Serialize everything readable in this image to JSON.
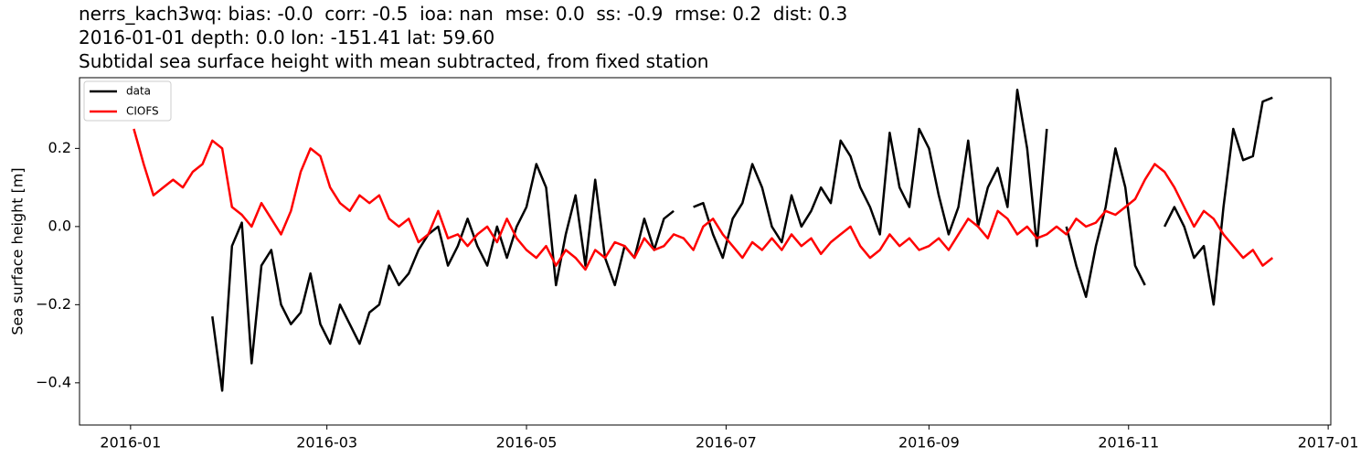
{
  "chart_data": {
    "type": "line",
    "title": [
      "nerrs_kach3wq: bias: -0.0  corr: -0.5  ioa: nan  mse: 0.0  ss: -0.9  rmse: 0.2  dist: 0.3",
      "2016-01-01 depth: 0.0 lon: -151.41 lat: 59.60",
      "Subtidal sea surface height with mean subtracted, from fixed station"
    ],
    "y_label": "Sea surface height [m]",
    "legend": "upper left",
    "grid": false,
    "x": [
      1,
      4,
      7,
      10,
      13,
      16,
      19,
      22,
      25,
      28,
      31,
      34,
      37,
      40,
      43,
      46,
      49,
      52,
      55,
      58,
      61,
      64,
      67,
      70,
      73,
      76,
      79,
      82,
      85,
      88,
      91,
      94,
      97,
      100,
      103,
      106,
      109,
      112,
      115,
      118,
      121,
      124,
      127,
      130,
      133,
      136,
      139,
      142,
      145,
      148,
      151,
      154,
      157,
      160,
      163,
      166,
      169,
      172,
      175,
      178,
      181,
      184,
      187,
      190,
      193,
      196,
      199,
      202,
      205,
      208,
      211,
      214,
      217,
      220,
      223,
      226,
      229,
      232,
      235,
      238,
      241,
      244,
      247,
      250,
      253,
      256,
      259,
      262,
      265,
      268,
      271,
      274,
      277,
      280,
      283,
      286,
      289,
      292,
      295,
      298,
      301,
      304,
      307,
      310,
      313,
      316,
      319,
      322,
      325,
      328,
      331,
      334,
      337,
      340,
      343,
      346,
      349
    ],
    "xlim": [
      -15.6,
      366.8
    ],
    "xticks": [
      {
        "value": 0,
        "label": "2016-01"
      },
      {
        "value": 60,
        "label": "2016-03"
      },
      {
        "value": 121,
        "label": "2016-05"
      },
      {
        "value": 182,
        "label": "2016-07"
      },
      {
        "value": 244,
        "label": "2016-09"
      },
      {
        "value": 305,
        "label": "2016-11"
      },
      {
        "value": 366,
        "label": "2017-01"
      }
    ],
    "ylim": [
      -0.508,
      0.381
    ],
    "yticks": [
      {
        "value": -0.4,
        "label": "−0.4"
      },
      {
        "value": -0.2,
        "label": "−0.2"
      },
      {
        "value": 0,
        "label": "0.0"
      },
      {
        "value": 0.2,
        "label": "0.2"
      }
    ],
    "series": [
      {
        "name": "data",
        "color": "#000000",
        "values": [
          null,
          null,
          null,
          null,
          null,
          null,
          null,
          null,
          -0.23,
          -0.42,
          -0.05,
          0.01,
          -0.35,
          -0.1,
          -0.06,
          -0.2,
          -0.25,
          -0.22,
          -0.12,
          -0.25,
          -0.3,
          -0.2,
          -0.25,
          -0.3,
          -0.22,
          -0.2,
          -0.1,
          -0.15,
          -0.12,
          -0.06,
          -0.02,
          0.0,
          -0.1,
          -0.05,
          0.02,
          -0.05,
          -0.1,
          0.0,
          -0.08,
          0.0,
          0.05,
          0.16,
          0.1,
          -0.15,
          -0.02,
          0.08,
          -0.1,
          0.12,
          -0.08,
          -0.15,
          -0.05,
          -0.08,
          0.02,
          -0.06,
          0.02,
          0.04,
          null,
          0.05,
          0.06,
          -0.02,
          -0.08,
          0.02,
          0.06,
          0.16,
          0.1,
          0.0,
          -0.04,
          0.08,
          0.0,
          0.04,
          0.1,
          0.06,
          0.22,
          0.18,
          0.1,
          0.05,
          -0.02,
          0.24,
          0.1,
          0.05,
          0.25,
          0.2,
          0.08,
          -0.02,
          0.05,
          0.22,
          0.0,
          0.1,
          0.15,
          0.05,
          0.35,
          0.2,
          -0.05,
          0.25,
          null,
          0.0,
          -0.1,
          -0.18,
          -0.05,
          0.05,
          0.2,
          0.1,
          -0.1,
          -0.15,
          null,
          0.0,
          0.05,
          0.0,
          -0.08,
          -0.05,
          -0.2,
          0.05,
          0.25,
          0.17,
          0.18,
          0.32,
          0.33
        ]
      },
      {
        "name": "CIOFS",
        "color": "#ff0000",
        "values": [
          0.25,
          0.16,
          0.08,
          0.1,
          0.12,
          0.1,
          0.14,
          0.16,
          0.22,
          0.2,
          0.05,
          0.03,
          0.0,
          0.06,
          0.02,
          -0.02,
          0.04,
          0.14,
          0.2,
          0.18,
          0.1,
          0.06,
          0.04,
          0.08,
          0.06,
          0.08,
          0.02,
          0.0,
          0.02,
          -0.04,
          -0.02,
          0.04,
          -0.03,
          -0.02,
          -0.05,
          -0.02,
          0.0,
          -0.04,
          0.02,
          -0.03,
          -0.06,
          -0.08,
          -0.05,
          -0.1,
          -0.06,
          -0.08,
          -0.11,
          -0.06,
          -0.08,
          -0.04,
          -0.05,
          -0.08,
          -0.03,
          -0.06,
          -0.05,
          -0.02,
          -0.03,
          -0.06,
          0.0,
          0.02,
          -0.02,
          -0.05,
          -0.08,
          -0.04,
          -0.06,
          -0.03,
          -0.06,
          -0.02,
          -0.05,
          -0.03,
          -0.07,
          -0.04,
          -0.02,
          0.0,
          -0.05,
          -0.08,
          -0.06,
          -0.02,
          -0.05,
          -0.03,
          -0.06,
          -0.05,
          -0.03,
          -0.06,
          -0.02,
          0.02,
          0.0,
          -0.03,
          0.04,
          0.02,
          -0.02,
          0.0,
          -0.03,
          -0.02,
          0.0,
          -0.02,
          0.02,
          0.0,
          0.01,
          0.04,
          0.03,
          0.05,
          0.07,
          0.12,
          0.16,
          0.14,
          0.1,
          0.05,
          0.0,
          0.04,
          0.02,
          -0.02,
          -0.05,
          -0.08,
          -0.06,
          -0.1,
          -0.08
        ]
      }
    ]
  }
}
